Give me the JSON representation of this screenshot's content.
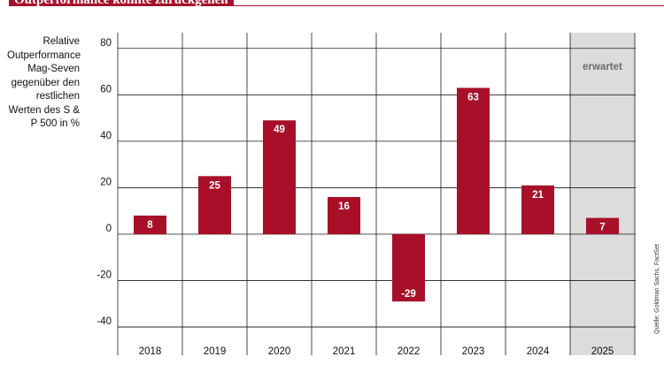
{
  "header": {
    "title": "Outperformance könnte zurückgehen"
  },
  "source": "Quelle: Goldman Sachs, FactSet",
  "colors": {
    "bar": "#a8102a",
    "forecast_band": "#dcdcdc",
    "grid": "#1a1a1a",
    "accent": "#a8102a"
  },
  "chart_data": {
    "type": "bar",
    "title": "Outperformance könnte zurückgehen",
    "ylabel": "Relative Outperformance Mag-Seven gegenüber den restlichen Werten des S & P 500 in %",
    "xlabel": "",
    "categories": [
      "2018",
      "2019",
      "2020",
      "2021",
      "2022",
      "2023",
      "2024",
      "2025"
    ],
    "values": [
      8,
      25,
      49,
      16,
      -29,
      63,
      21,
      7
    ],
    "data_labels": [
      "8",
      "25",
      "49",
      "16",
      "-29",
      "63",
      "21",
      "7"
    ],
    "ylim": [
      -44,
      84
    ],
    "yticks": [
      80,
      60,
      40,
      20,
      0,
      -20,
      -40
    ],
    "ytick_labels": [
      "80",
      "60",
      "40",
      "20",
      "0",
      "-20",
      "-40"
    ],
    "forecast": {
      "category": "2025",
      "label": "erwartet"
    },
    "grid": true,
    "legend": "none"
  }
}
